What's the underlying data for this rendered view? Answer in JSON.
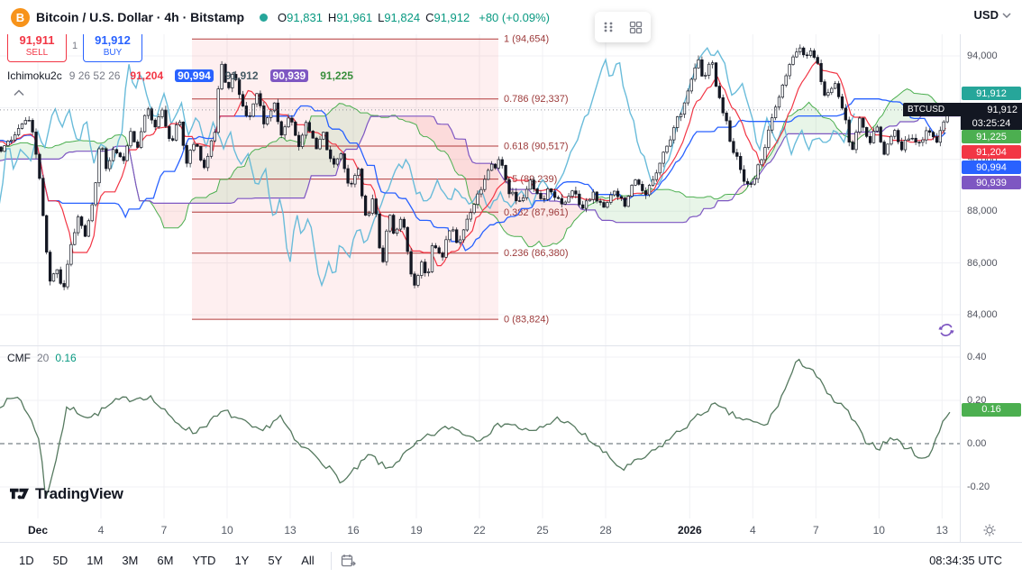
{
  "topbar": {
    "symbol_title": "Bitcoin / U.S. Dollar · 4h · Bitstamp",
    "logo_letter": "B",
    "o_label": "O",
    "open": "91,831",
    "h_label": "H",
    "high": "91,961",
    "l_label": "L",
    "low": "91,824",
    "c_label": "C",
    "close": "91,912",
    "change": "+80 (+0.09%)",
    "currency": "USD"
  },
  "trade": {
    "sell_price": "91,911",
    "sell_label": "SELL",
    "spread": "1",
    "buy_price": "91,912",
    "buy_label": "BUY"
  },
  "legend": {
    "name": "Ichimoku2c",
    "params": "9 26 52 26",
    "values": [
      {
        "text": "91,204",
        "color": "#f23645",
        "bg": ""
      },
      {
        "text": "90,994",
        "color": "#ffffff",
        "bg": "#2962ff"
      },
      {
        "text": "91,912",
        "color": "#455a64",
        "bg": ""
      },
      {
        "text": "90,939",
        "color": "#ffffff",
        "bg": "#7e57c2"
      },
      {
        "text": "91,225",
        "color": "#388e3c",
        "bg": ""
      }
    ]
  },
  "price_axis": {
    "labels": [
      "94,000",
      "92,000",
      "90,000",
      "88,000",
      "86,000",
      "84,000"
    ],
    "label_prices": [
      94000,
      92000,
      90000,
      88000,
      86000,
      84000
    ],
    "last_price_badge": {
      "text": "91,912",
      "color": "#26a69a"
    },
    "countdown": {
      "symbol": "BTCUSD",
      "price": "91,912",
      "time": "03:25:24"
    },
    "line_badges": [
      {
        "text": "91,225",
        "color": "#4caf50"
      },
      {
        "text": "91,204",
        "color": "#f23645"
      },
      {
        "text": "90,994",
        "color": "#2962ff"
      },
      {
        "text": "90,939",
        "color": "#7e57c2"
      }
    ]
  },
  "fib": {
    "start_day": 7.33,
    "end_day": 21.9,
    "levels": [
      {
        "label": "1 (94,654)",
        "price": 94654
      },
      {
        "label": "0.786 (92,337)",
        "price": 92337
      },
      {
        "label": "0.618 (90,517)",
        "price": 90517
      },
      {
        "label": "0.5 (89,239)",
        "price": 89239
      },
      {
        "label": "0.382 (87,961)",
        "price": 87961
      },
      {
        "label": "0.236 (86,380)",
        "price": 86380
      },
      {
        "label": "0 (83,824)",
        "price": 83824
      }
    ]
  },
  "time_axis": {
    "ticks": [
      {
        "label": "Dec",
        "day": 0,
        "strong": true
      },
      {
        "label": "4",
        "day": 3
      },
      {
        "label": "7",
        "day": 6
      },
      {
        "label": "10",
        "day": 9
      },
      {
        "label": "13",
        "day": 12
      },
      {
        "label": "16",
        "day": 15
      },
      {
        "label": "19",
        "day": 18
      },
      {
        "label": "22",
        "day": 21
      },
      {
        "label": "25",
        "day": 24
      },
      {
        "label": "28",
        "day": 27
      },
      {
        "label": "2026",
        "day": 31,
        "strong": true
      },
      {
        "label": "4",
        "day": 34
      },
      {
        "label": "7",
        "day": 37
      },
      {
        "label": "10",
        "day": 40
      },
      {
        "label": "13",
        "day": 43
      }
    ]
  },
  "cmf_panel": {
    "name": "CMF",
    "param": "20",
    "value": "0.16",
    "axis_labels": [
      "0.40",
      "0.20",
      "0.00",
      "-0.20"
    ],
    "axis_values": [
      0.4,
      0.2,
      0.0,
      -0.2
    ],
    "badge": {
      "text": "0.16",
      "color": "#4caf50",
      "value": 0.16
    }
  },
  "bottom_toolbar": {
    "ranges": [
      "1D",
      "5D",
      "1M",
      "3M",
      "6M",
      "YTD",
      "1Y",
      "5Y",
      "All"
    ],
    "clock": "08:34:35 UTC"
  },
  "watermark": "TradingView",
  "colors": {
    "up_fill": "#ffffff",
    "down_fill": "#131722",
    "candle_stroke": "#131722",
    "tenkan": "#f23645",
    "kijun": "#2962ff",
    "senkou_a": "#4caf50",
    "senkou_b": "#7e57c2",
    "chikou": "#62b8d8",
    "cloud_green": "rgba(76,175,80,0.13)",
    "cloud_red": "rgba(239,83,80,0.13)",
    "fib_line": "#b23b3b",
    "fib_fill": "rgba(242,54,69,0.08)",
    "fib_text": "#9c3a3a",
    "grid": "#f0f1f4",
    "cmf_line": "#55795f",
    "last_price_line": "#787b86"
  },
  "chart_data": {
    "type": "candlestick",
    "symbol": "BTCUSD",
    "interval": "4h",
    "exchange": "Bitstamp",
    "indicators": [
      "Ichimoku2c 9 26 52 26",
      "CMF 20"
    ],
    "y_axis": {
      "min": 83000,
      "max": 96100
    },
    "price_anchors": [
      [
        -16,
        88500
      ],
      [
        -14,
        89800
      ],
      [
        -12,
        88800
      ],
      [
        -10,
        90500
      ],
      [
        -8,
        89600
      ],
      [
        -6,
        91200
      ],
      [
        -4,
        90300
      ],
      [
        -3,
        91000
      ],
      [
        -2.4,
        90500
      ],
      [
        -1.8,
        90300
      ],
      [
        -1.1,
        90900
      ],
      [
        -0.5,
        91600
      ],
      [
        -0.2,
        90800
      ],
      [
        0.1,
        89200
      ],
      [
        0.35,
        86800
      ],
      [
        0.6,
        85100
      ],
      [
        0.9,
        85900
      ],
      [
        1.2,
        84900
      ],
      [
        1.5,
        86300
      ],
      [
        1.9,
        87800
      ],
      [
        2.3,
        87000
      ],
      [
        2.6,
        88300
      ],
      [
        3.0,
        90800
      ],
      [
        3.3,
        89600
      ],
      [
        3.7,
        90500
      ],
      [
        4.0,
        89800
      ],
      [
        4.4,
        91200
      ],
      [
        4.8,
        90400
      ],
      [
        5.2,
        92300
      ],
      [
        5.5,
        91100
      ],
      [
        5.9,
        91900
      ],
      [
        6.3,
        90600
      ],
      [
        6.7,
        91500
      ],
      [
        7.1,
        89900
      ],
      [
        7.5,
        90800
      ],
      [
        7.9,
        89600
      ],
      [
        8.4,
        91000
      ],
      [
        8.7,
        94000
      ],
      [
        9.0,
        92700
      ],
      [
        9.3,
        93400
      ],
      [
        9.6,
        92400
      ],
      [
        10.0,
        91600
      ],
      [
        10.4,
        92600
      ],
      [
        10.8,
        91300
      ],
      [
        11.2,
        92200
      ],
      [
        11.6,
        90900
      ],
      [
        12.0,
        91800
      ],
      [
        12.4,
        90500
      ],
      [
        12.8,
        91600
      ],
      [
        13.2,
        90300
      ],
      [
        13.6,
        91000
      ],
      [
        14.0,
        89600
      ],
      [
        14.4,
        90400
      ],
      [
        14.8,
        88900
      ],
      [
        15.2,
        89800
      ],
      [
        15.6,
        87600
      ],
      [
        16.0,
        88600
      ],
      [
        16.35,
        85800
      ],
      [
        16.7,
        87900
      ],
      [
        17.0,
        86900
      ],
      [
        17.3,
        88000
      ],
      [
        17.6,
        86200
      ],
      [
        17.9,
        85000
      ],
      [
        18.2,
        86100
      ],
      [
        18.5,
        85400
      ],
      [
        18.8,
        86900
      ],
      [
        19.2,
        86200
      ],
      [
        19.6,
        87400
      ],
      [
        20.0,
        86700
      ],
      [
        20.5,
        87900
      ],
      [
        21.0,
        88800
      ],
      [
        21.5,
        89600
      ],
      [
        22.0,
        90000
      ],
      [
        22.4,
        88800
      ],
      [
        22.9,
        88300
      ],
      [
        23.4,
        89100
      ],
      [
        23.9,
        88300
      ],
      [
        24.4,
        88900
      ],
      [
        24.9,
        88200
      ],
      [
        25.4,
        88800
      ],
      [
        25.9,
        88100
      ],
      [
        26.4,
        88700
      ],
      [
        26.9,
        88000
      ],
      [
        27.4,
        88900
      ],
      [
        27.9,
        88300
      ],
      [
        28.4,
        89100
      ],
      [
        28.9,
        88500
      ],
      [
        29.4,
        89600
      ],
      [
        29.9,
        90500
      ],
      [
        30.4,
        91500
      ],
      [
        30.9,
        92600
      ],
      [
        31.4,
        93800
      ],
      [
        31.7,
        93000
      ],
      [
        32.0,
        93900
      ],
      [
        32.3,
        92800
      ],
      [
        32.7,
        91500
      ],
      [
        33.1,
        90300
      ],
      [
        33.5,
        89400
      ],
      [
        33.9,
        88900
      ],
      [
        34.3,
        89800
      ],
      [
        34.7,
        90900
      ],
      [
        35.1,
        92000
      ],
      [
        35.5,
        93000
      ],
      [
        35.9,
        93900
      ],
      [
        36.2,
        94500
      ],
      [
        36.5,
        93700
      ],
      [
        36.8,
        94400
      ],
      [
        37.1,
        93500
      ],
      [
        37.5,
        92300
      ],
      [
        37.9,
        93100
      ],
      [
        38.3,
        91900
      ],
      [
        38.7,
        90200
      ],
      [
        39.1,
        91700
      ],
      [
        39.5,
        90500
      ],
      [
        39.9,
        91300
      ],
      [
        40.3,
        90200
      ],
      [
        40.7,
        91100
      ],
      [
        41.1,
        90300
      ],
      [
        41.5,
        91100
      ],
      [
        41.9,
        90500
      ],
      [
        42.3,
        91300
      ],
      [
        42.7,
        90600
      ],
      [
        43.0,
        91200
      ],
      [
        43.3,
        91912
      ]
    ],
    "ichimoku_params": [
      9,
      26,
      52,
      26
    ],
    "cmf_anchors": [
      [
        -1.8,
        0.18
      ],
      [
        -0.9,
        0.22
      ],
      [
        0.1,
        0.02
      ],
      [
        0.35,
        -0.26
      ],
      [
        0.8,
        -0.1
      ],
      [
        1.4,
        0.17
      ],
      [
        2.5,
        0.12
      ],
      [
        3.8,
        0.2
      ],
      [
        5.3,
        0.22
      ],
      [
        6.3,
        0.12
      ],
      [
        7.4,
        0.05
      ],
      [
        8.9,
        0.15
      ],
      [
        10.6,
        0.05
      ],
      [
        11.5,
        0.13
      ],
      [
        12.3,
        0.0
      ],
      [
        13.2,
        -0.05
      ],
      [
        14.5,
        -0.18
      ],
      [
        15.8,
        -0.05
      ],
      [
        16.6,
        -0.12
      ],
      [
        18.3,
        0.02
      ],
      [
        19.6,
        0.08
      ],
      [
        20.9,
        0.02
      ],
      [
        22.2,
        0.1
      ],
      [
        23.5,
        0.05
      ],
      [
        24.8,
        0.12
      ],
      [
        26.1,
        0.03
      ],
      [
        27.8,
        -0.12
      ],
      [
        29.1,
        -0.05
      ],
      [
        30.8,
        0.08
      ],
      [
        32.1,
        0.18
      ],
      [
        33.3,
        0.12
      ],
      [
        34.6,
        0.08
      ],
      [
        35.3,
        0.2
      ],
      [
        36.1,
        0.38
      ],
      [
        36.8,
        0.35
      ],
      [
        37.6,
        0.22
      ],
      [
        38.5,
        0.15
      ],
      [
        39.3,
        0.02
      ],
      [
        40.0,
        -0.02
      ],
      [
        40.6,
        0.03
      ],
      [
        41.5,
        -0.03
      ],
      [
        42.3,
        -0.08
      ],
      [
        43.0,
        0.1
      ],
      [
        43.5,
        0.16
      ]
    ]
  }
}
